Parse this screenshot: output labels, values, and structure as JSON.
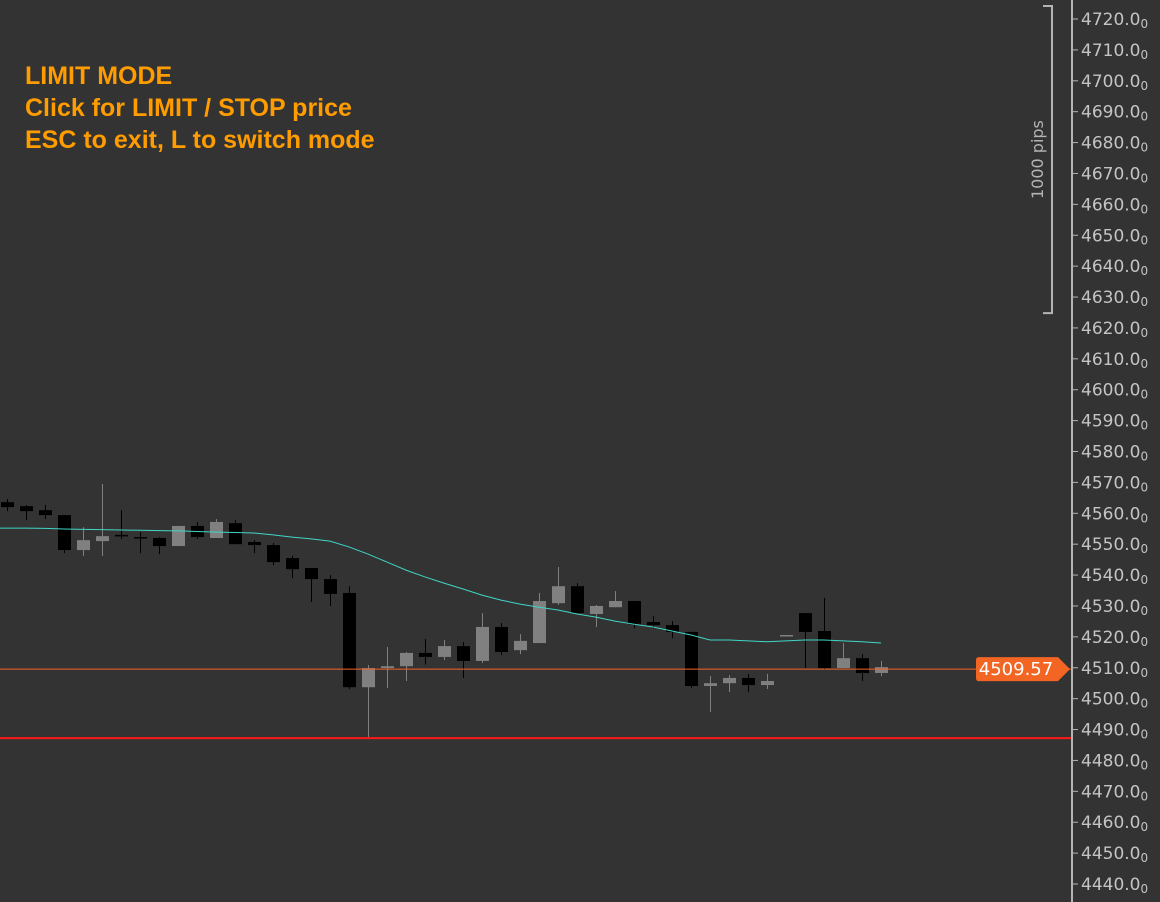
{
  "overlay": {
    "line1": "LIMIT MODE",
    "line2": "Click for LIMIT / STOP price",
    "line3": "ESC to exit, L to switch mode",
    "color": "#ff9c00"
  },
  "range_marker": {
    "label": "1000 pips",
    "from": 4624.8,
    "to": 4724.2
  },
  "chart_data": {
    "type": "candlestick",
    "ylim": [
      4440,
      4720
    ],
    "y_ticks": [
      4720,
      4710,
      4700,
      4690,
      4680,
      4670,
      4660,
      4650,
      4640,
      4630,
      4620,
      4610,
      4600,
      4590,
      4580,
      4570,
      4560,
      4550,
      4540,
      4530,
      4520,
      4510,
      4500,
      4490,
      4480,
      4470,
      4460,
      4450,
      4440
    ],
    "tick_format": {
      "main_decimals": 1,
      "subscript_digit": "0"
    },
    "grid": false,
    "colors": {
      "bullish": "#808080",
      "bearish": "#000000",
      "moving_average": "#3fd6c6",
      "current_price": "#f26522",
      "order_line": "#ff1a1a",
      "background": "#333333"
    },
    "current_price": {
      "value": 4509.57,
      "label": "4509.57"
    },
    "order_line": {
      "value": 4487.2
    },
    "candles": [
      {
        "o": 4563.6,
        "h": 4564.6,
        "l": 4560.7,
        "c": 4562.0
      },
      {
        "o": 4562.3,
        "h": 4562.7,
        "l": 4557.8,
        "c": 4560.7
      },
      {
        "o": 4561.0,
        "h": 4562.7,
        "l": 4558.1,
        "c": 4559.4
      },
      {
        "o": 4559.4,
        "h": 4559.4,
        "l": 4547.1,
        "c": 4548.1
      },
      {
        "o": 4548.1,
        "h": 4555.5,
        "l": 4546.2,
        "c": 4551.3
      },
      {
        "o": 4551.0,
        "h": 4569.5,
        "l": 4546.2,
        "c": 4552.6
      },
      {
        "o": 4553.0,
        "h": 4561.0,
        "l": 4551.7,
        "c": 4552.7
      },
      {
        "o": 4552.3,
        "h": 4553.9,
        "l": 4547.1,
        "c": 4552.0
      },
      {
        "o": 4552.0,
        "h": 4552.3,
        "l": 4546.8,
        "c": 4549.4
      },
      {
        "o": 4549.4,
        "h": 4555.9,
        "l": 4549.4,
        "c": 4555.9
      },
      {
        "o": 4555.9,
        "h": 4557.2,
        "l": 4551.7,
        "c": 4552.3
      },
      {
        "o": 4552.0,
        "h": 4558.1,
        "l": 4552.0,
        "c": 4557.2
      },
      {
        "o": 4556.8,
        "h": 4557.8,
        "l": 4550.0,
        "c": 4550.0
      },
      {
        "o": 4550.7,
        "h": 4551.3,
        "l": 4547.1,
        "c": 4549.7
      },
      {
        "o": 4549.7,
        "h": 4550.4,
        "l": 4543.2,
        "c": 4544.2
      },
      {
        "o": 4545.5,
        "h": 4546.2,
        "l": 4539.0,
        "c": 4541.9
      },
      {
        "o": 4542.3,
        "h": 4542.3,
        "l": 4531.3,
        "c": 4538.7
      },
      {
        "o": 4538.7,
        "h": 4540.0,
        "l": 4530.0,
        "c": 4533.9
      },
      {
        "o": 4534.2,
        "h": 4536.4,
        "l": 4503.1,
        "c": 4503.7
      },
      {
        "o": 4503.7,
        "h": 4510.9,
        "l": 4487.6,
        "c": 4509.9
      },
      {
        "o": 4509.9,
        "h": 4516.7,
        "l": 4503.4,
        "c": 4510.5
      },
      {
        "o": 4510.5,
        "h": 4515.1,
        "l": 4505.7,
        "c": 4514.8
      },
      {
        "o": 4514.8,
        "h": 4519.3,
        "l": 4511.0,
        "c": 4513.5
      },
      {
        "o": 4513.5,
        "h": 4519.0,
        "l": 4512.5,
        "c": 4517.0
      },
      {
        "o": 4517.0,
        "h": 4518.3,
        "l": 4506.7,
        "c": 4512.2
      },
      {
        "o": 4512.2,
        "h": 4527.7,
        "l": 4511.5,
        "c": 4523.2
      },
      {
        "o": 4523.2,
        "h": 4524.5,
        "l": 4514.1,
        "c": 4515.1
      },
      {
        "o": 4515.7,
        "h": 4520.9,
        "l": 4514.4,
        "c": 4518.7
      },
      {
        "o": 4518.0,
        "h": 4534.2,
        "l": 4518.0,
        "c": 4531.6
      },
      {
        "o": 4530.9,
        "h": 4542.6,
        "l": 4530.3,
        "c": 4536.4
      },
      {
        "o": 4536.4,
        "h": 4537.4,
        "l": 4527.7,
        "c": 4527.7
      },
      {
        "o": 4527.4,
        "h": 4530.3,
        "l": 4523.2,
        "c": 4530.0
      },
      {
        "o": 4529.6,
        "h": 4534.8,
        "l": 4529.6,
        "c": 4531.6
      },
      {
        "o": 4531.6,
        "h": 4531.6,
        "l": 4522.8,
        "c": 4524.1
      },
      {
        "o": 4524.8,
        "h": 4526.7,
        "l": 4522.8,
        "c": 4523.8
      },
      {
        "o": 4523.8,
        "h": 4525.1,
        "l": 4519.6,
        "c": 4521.6
      },
      {
        "o": 4521.6,
        "h": 4521.6,
        "l": 4503.4,
        "c": 4504.1
      },
      {
        "o": 4504.1,
        "h": 4507.3,
        "l": 4495.7,
        "c": 4505.0
      },
      {
        "o": 4505.0,
        "h": 4507.6,
        "l": 4502.1,
        "c": 4506.7
      },
      {
        "o": 4506.7,
        "h": 4508.0,
        "l": 4502.1,
        "c": 4504.4
      },
      {
        "o": 4504.4,
        "h": 4508.0,
        "l": 4503.1,
        "c": 4505.7
      },
      {
        "o": 4520.6,
        "h": 4520.6,
        "l": 4520.6,
        "c": 4520.6
      },
      {
        "o": 4527.7,
        "h": 4527.7,
        "l": 4509.9,
        "c": 4521.6
      },
      {
        "o": 4521.9,
        "h": 4532.6,
        "l": 4509.3,
        "c": 4509.9
      },
      {
        "o": 4509.9,
        "h": 4518.0,
        "l": 4509.9,
        "c": 4513.1
      },
      {
        "o": 4513.1,
        "h": 4514.4,
        "l": 4505.7,
        "c": 4508.3
      },
      {
        "o": 4508.3,
        "h": 4512.2,
        "l": 4507.3,
        "c": 4510.2
      }
    ],
    "moving_average": [
      4555.2,
      4555.2,
      4555.1,
      4554.9,
      4554.8,
      4554.7,
      4554.6,
      4554.5,
      4554.4,
      4554.3,
      4554.1,
      4553.9,
      4553.8,
      4553.6,
      4553.0,
      4552.3,
      4551.7,
      4551.0,
      4549.1,
      4546.8,
      4544.2,
      4541.6,
      4539.4,
      4537.4,
      4535.5,
      4533.5,
      4531.9,
      4530.6,
      4529.6,
      4528.7,
      4527.4,
      4526.4,
      4525.1,
      4524.1,
      4523.2,
      4521.9,
      4520.6,
      4519.0,
      4519.0,
      4518.7,
      4518.4,
      4518.7,
      4519.0,
      4519.0,
      4518.7,
      4518.4,
      4518.0
    ]
  }
}
